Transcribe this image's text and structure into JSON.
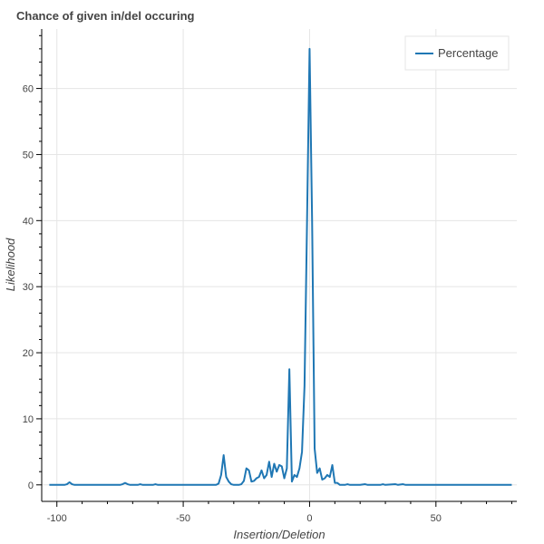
{
  "chart_data": {
    "type": "line",
    "title": "Chance of given in/del occuring",
    "xlabel": "Insertion/Deletion",
    "ylabel": "Likelihood",
    "xlim": [
      -106,
      82
    ],
    "ylim": [
      -2.5,
      69
    ],
    "x_ticks": [
      -100,
      -50,
      0,
      50
    ],
    "y_ticks": [
      0,
      10,
      20,
      30,
      40,
      50,
      60
    ],
    "grid": true,
    "legend_position": "top-right",
    "series": [
      {
        "name": "Percentage",
        "color": "#1f77b4",
        "points": [
          [
            -103,
            0
          ],
          [
            -100,
            0
          ],
          [
            -97,
            0
          ],
          [
            -96,
            0.1
          ],
          [
            -95,
            0.4
          ],
          [
            -94,
            0.1
          ],
          [
            -93,
            0
          ],
          [
            -90,
            0
          ],
          [
            -85,
            0
          ],
          [
            -80,
            0
          ],
          [
            -75,
            0
          ],
          [
            -74,
            0.1
          ],
          [
            -73,
            0.3
          ],
          [
            -72,
            0.1
          ],
          [
            -71,
            0
          ],
          [
            -68,
            0
          ],
          [
            -67,
            0.1
          ],
          [
            -66,
            0
          ],
          [
            -62,
            0
          ],
          [
            -61,
            0.1
          ],
          [
            -60,
            0
          ],
          [
            -55,
            0
          ],
          [
            -50,
            0
          ],
          [
            -45,
            0
          ],
          [
            -40,
            0
          ],
          [
            -37,
            0
          ],
          [
            -36,
            0.2
          ],
          [
            -35,
            1.5
          ],
          [
            -34,
            4.5
          ],
          [
            -33,
            1.2
          ],
          [
            -32,
            0.5
          ],
          [
            -31,
            0.1
          ],
          [
            -30,
            0
          ],
          [
            -28,
            0
          ],
          [
            -27,
            0.1
          ],
          [
            -26,
            0.6
          ],
          [
            -25,
            2.5
          ],
          [
            -24,
            2.2
          ],
          [
            -23,
            0.5
          ],
          [
            -22,
            0.6
          ],
          [
            -21,
            1.0
          ],
          [
            -20,
            1.2
          ],
          [
            -19,
            2.2
          ],
          [
            -18,
            1.0
          ],
          [
            -17,
            1.5
          ],
          [
            -16,
            3.5
          ],
          [
            -15,
            1.2
          ],
          [
            -14,
            3.2
          ],
          [
            -13,
            2.0
          ],
          [
            -12,
            3.0
          ],
          [
            -11,
            2.8
          ],
          [
            -10,
            1.0
          ],
          [
            -9,
            2.5
          ],
          [
            -8,
            17.5
          ],
          [
            -7,
            0.5
          ],
          [
            -6,
            1.5
          ],
          [
            -5,
            1.2
          ],
          [
            -4,
            2.5
          ],
          [
            -3,
            5.0
          ],
          [
            -2,
            15.0
          ],
          [
            -1,
            40.0
          ],
          [
            0,
            66.0
          ],
          [
            1,
            40.0
          ],
          [
            2,
            5.5
          ],
          [
            3,
            1.8
          ],
          [
            4,
            2.5
          ],
          [
            5,
            0.8
          ],
          [
            6,
            1.0
          ],
          [
            7,
            1.5
          ],
          [
            8,
            1.2
          ],
          [
            9,
            3.0
          ],
          [
            10,
            0.3
          ],
          [
            11,
            0.3
          ],
          [
            12,
            0
          ],
          [
            14,
            0
          ],
          [
            15,
            0.1
          ],
          [
            16,
            0
          ],
          [
            20,
            0
          ],
          [
            22,
            0.1
          ],
          [
            23,
            0
          ],
          [
            28,
            0
          ],
          [
            29,
            0.1
          ],
          [
            30,
            0
          ],
          [
            34,
            0.1
          ],
          [
            35,
            0
          ],
          [
            37,
            0.1
          ],
          [
            38,
            0
          ],
          [
            40,
            0
          ],
          [
            45,
            0
          ],
          [
            50,
            0
          ],
          [
            55,
            0
          ],
          [
            60,
            0
          ],
          [
            65,
            0
          ],
          [
            70,
            0
          ],
          [
            75,
            0
          ],
          [
            80,
            0
          ]
        ]
      }
    ]
  }
}
